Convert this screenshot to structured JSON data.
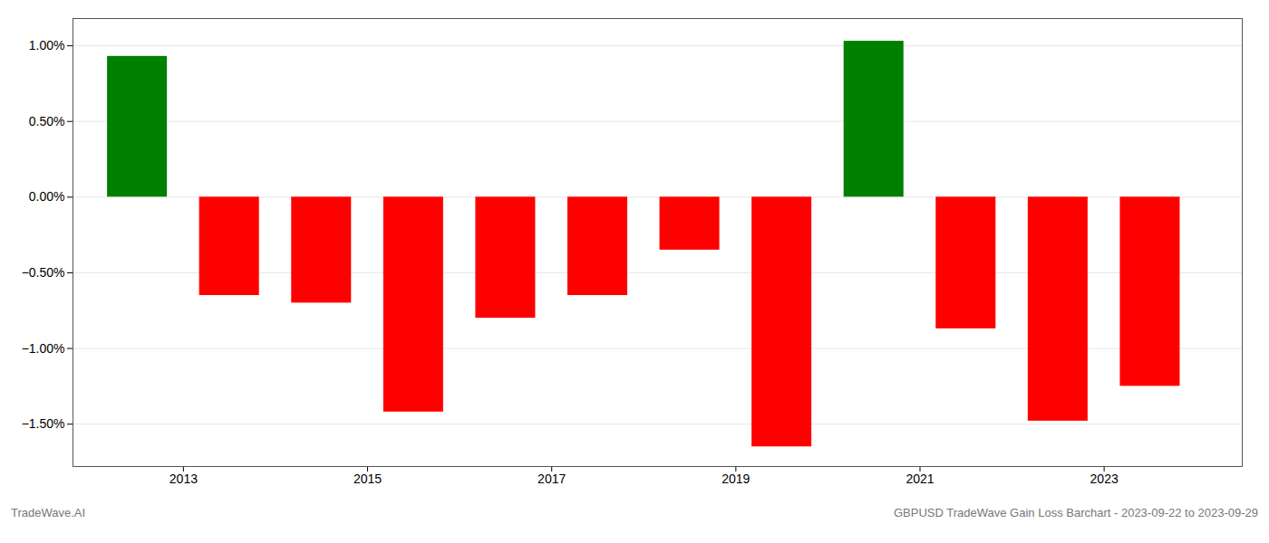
{
  "chart_data": {
    "type": "bar",
    "x": [
      2012.5,
      2013.5,
      2014.5,
      2015.5,
      2016.5,
      2017.5,
      2018.5,
      2019.5,
      2020.5,
      2021.5,
      2022.5,
      2023.5
    ],
    "values": [
      0.93,
      -0.65,
      -0.7,
      -1.42,
      -0.8,
      -0.65,
      -0.35,
      -1.65,
      1.03,
      -0.87,
      -1.48,
      -1.25
    ],
    "colors": [
      "#008000",
      "#ff0000",
      "#ff0000",
      "#ff0000",
      "#ff0000",
      "#ff0000",
      "#ff0000",
      "#ff0000",
      "#008000",
      "#ff0000",
      "#ff0000",
      "#ff0000"
    ],
    "xlim": [
      2011.8,
      2024.5
    ],
    "xticks": [
      2013,
      2015,
      2017,
      2019,
      2021,
      2023
    ],
    "ylim": [
      -1.78,
      1.18
    ],
    "yticks": [
      {
        "value": -1.5,
        "label": "−1.50%"
      },
      {
        "value": -1.0,
        "label": "−1.00%"
      },
      {
        "value": -0.5,
        "label": "−0.50%"
      },
      {
        "value": 0,
        "label": "0.00%"
      },
      {
        "value": 0.5,
        "label": "0.50%"
      },
      {
        "value": 1.0,
        "label": "1.00%"
      }
    ],
    "grid": true,
    "annotations": [
      "TradeWave.AI",
      "GBPUSD TradeWave Gain Loss Barchart - 2023-09-22 to 2023-09-29"
    ]
  }
}
